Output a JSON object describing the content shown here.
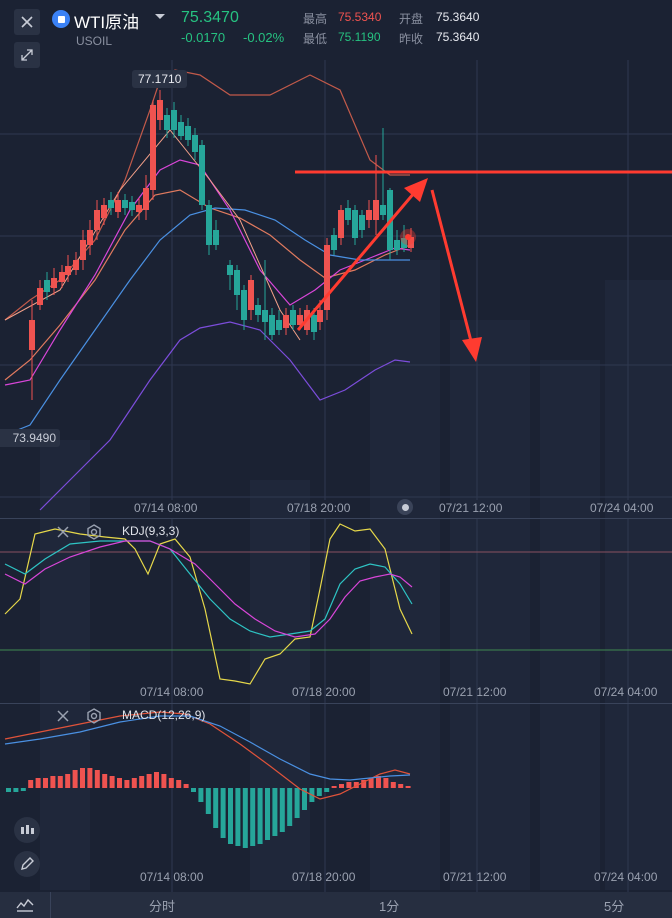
{
  "header": {
    "symbol": "WTI原油",
    "code": "USOIL",
    "price": "75.3470",
    "change": "-0.0170",
    "change_pct": "-0.02%",
    "high_label": "最高",
    "high": "75.5340",
    "low_label": "最低",
    "low": "75.1190",
    "open_label": "开盘",
    "open": "75.3640",
    "prev_close_label": "昨收",
    "prev_close": "75.3640"
  },
  "colors": {
    "up": "#ef5350",
    "down": "#26a69a",
    "bg": "#1b2233",
    "annotation": "#ff3b30"
  },
  "main_chart": {
    "max_label": "77.1710",
    "min_label": "73.9490",
    "x_ticks": [
      "07/14 08:00",
      "07/18 20:00",
      "07/21 12:00",
      "07/24 04:00"
    ]
  },
  "kdj": {
    "title": "KDJ(9,3,3)",
    "x_ticks": [
      "07/14 08:00",
      "07/18 20:00",
      "07/21 12:00",
      "07/24 04:00"
    ]
  },
  "macd": {
    "title": "MACD(12,26,9)",
    "x_ticks": [
      "07/14 08:00",
      "07/18 20:00",
      "07/21 12:00",
      "07/24 04:00"
    ]
  },
  "bottom_tabs": [
    "分时",
    "1分",
    "5分"
  ],
  "icons": [
    "close-icon",
    "collapse-icon",
    "dropdown-icon",
    "candlestick-icon",
    "pencil-icon",
    "indicator-icon",
    "settings-icon"
  ]
}
